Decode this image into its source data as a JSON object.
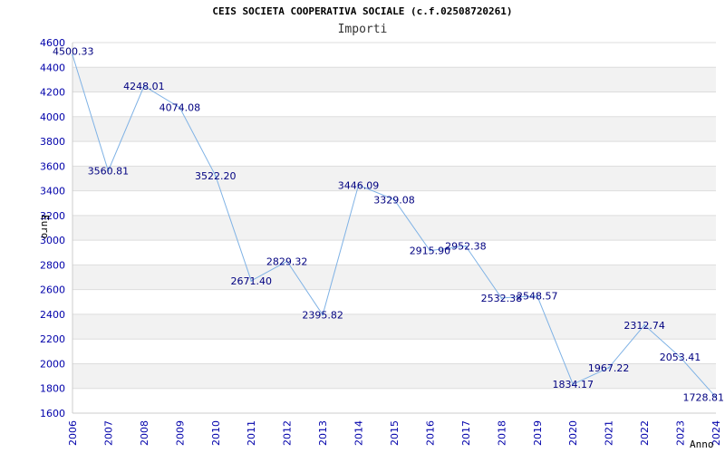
{
  "chart_data": {
    "type": "line",
    "title": "CEIS SOCIETA COOPERATIVA SOCIALE (c.f.02508720261)",
    "subtitle": "Importi",
    "xlabel": "Anno",
    "ylabel": "Euro",
    "x": [
      2006,
      2007,
      2008,
      2009,
      2010,
      2011,
      2012,
      2013,
      2014,
      2015,
      2016,
      2017,
      2018,
      2019,
      2020,
      2021,
      2022,
      2023,
      2024
    ],
    "values": [
      4500.33,
      3560.81,
      4248.01,
      4074.08,
      3522.2,
      2671.4,
      2829.32,
      2395.82,
      3446.09,
      3329.08,
      2915.9,
      2952.38,
      2532.38,
      2548.57,
      1834.17,
      1967.22,
      2312.74,
      2053.41,
      1728.81
    ],
    "labels": [
      "4500.33",
      "3560.81",
      "4248.01",
      "4074.08",
      "3522.20",
      "2671.40",
      "2829.32",
      "2395.82",
      "3446.09",
      "3329.08",
      "2915.90",
      "2952.38",
      "2532.38",
      "2548.57",
      "1834.17",
      "1967.22",
      "2312.74",
      "2053.41",
      "1728.81"
    ],
    "ylim": [
      1600,
      4600
    ],
    "yticks": [
      1600,
      1800,
      2000,
      2200,
      2400,
      2600,
      2800,
      3000,
      3200,
      3400,
      3600,
      3800,
      4000,
      4200,
      4400,
      4600
    ],
    "grid": true,
    "line_color": "#7fb2e5",
    "band_color": "#f2f2f2",
    "tick_color": "#0000aa"
  }
}
